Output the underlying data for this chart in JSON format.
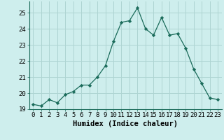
{
  "x": [
    0,
    1,
    2,
    3,
    4,
    5,
    6,
    7,
    8,
    9,
    10,
    11,
    12,
    13,
    14,
    15,
    16,
    17,
    18,
    19,
    20,
    21,
    22,
    23
  ],
  "y": [
    19.3,
    19.2,
    19.6,
    19.4,
    19.9,
    20.1,
    20.5,
    20.5,
    21.0,
    21.7,
    23.2,
    24.4,
    24.5,
    25.3,
    24.0,
    23.6,
    24.7,
    23.6,
    23.7,
    22.8,
    21.5,
    20.6,
    19.7,
    19.6
  ],
  "xlabel": "Humidex (Indice chaleur)",
  "line_color": "#1a6b5a",
  "marker": "D",
  "marker_size": 2.2,
  "bg_color": "#ceeeed",
  "grid_color": "#aed4d2",
  "ylim": [
    19,
    25.7
  ],
  "xlim": [
    -0.5,
    23.5
  ],
  "yticks": [
    19,
    20,
    21,
    22,
    23,
    24,
    25
  ],
  "xtick_labels": [
    "0",
    "1",
    "2",
    "3",
    "4",
    "5",
    "6",
    "7",
    "8",
    "9",
    "10",
    "11",
    "12",
    "13",
    "14",
    "15",
    "16",
    "17",
    "18",
    "19",
    "20",
    "21",
    "22",
    "23"
  ],
  "tick_fontsize": 6.5,
  "xlabel_fontsize": 7.5
}
